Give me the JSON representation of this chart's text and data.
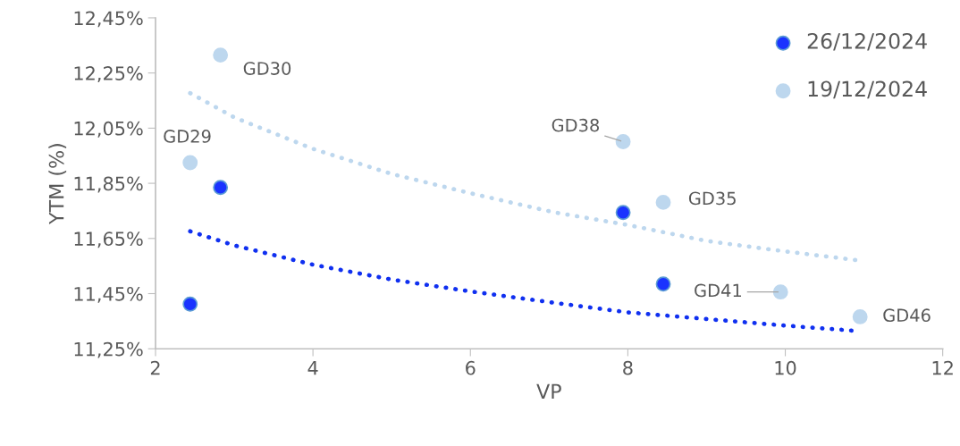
{
  "chart_data": {
    "type": "scatter",
    "xlabel": "VP",
    "ylabel": "YTM (%)",
    "xlim": [
      2,
      12
    ],
    "xticks": [
      2,
      4,
      6,
      8,
      10,
      12
    ],
    "ylim": [
      11.25,
      12.45
    ],
    "yticks": [
      {
        "value": 11.25,
        "label": "11,25%"
      },
      {
        "value": 11.45,
        "label": "11,45%"
      },
      {
        "value": 11.65,
        "label": "11,65%"
      },
      {
        "value": 11.85,
        "label": "11,85%"
      },
      {
        "value": 12.05,
        "label": "12,05%"
      },
      {
        "value": 12.25,
        "label": "12,25%"
      },
      {
        "value": 12.45,
        "label": "12,45%"
      }
    ],
    "grid": false,
    "legend": "top right",
    "series": [
      {
        "type": "line",
        "line_style": "dotted",
        "color": "#bdd7ee",
        "x": [
          2.44,
          3,
          4,
          5,
          6,
          7.06,
          8,
          9,
          10,
          10.92
        ],
        "values": [
          12.177,
          12.089,
          11.975,
          11.884,
          11.814,
          11.745,
          11.699,
          11.641,
          11.603,
          11.571
        ]
      },
      {
        "type": "line",
        "line_style": "dotted",
        "color": "#1030f0",
        "x": [
          2.44,
          3,
          4,
          5,
          6,
          7.06,
          8,
          9,
          10,
          10.85
        ],
        "values": [
          11.676,
          11.625,
          11.555,
          11.501,
          11.458,
          11.417,
          11.382,
          11.358,
          11.334,
          11.316
        ]
      },
      {
        "name": "26/12/2024",
        "color": "#1a33ff",
        "marker": "circle",
        "x": [
          2.44,
          2.825,
          7.94,
          8.45
        ],
        "values": [
          11.412,
          11.835,
          11.744,
          11.485
        ]
      },
      {
        "name": "19/12/2024",
        "color": "#bdd7ee",
        "marker": "circle",
        "x": [
          2.44,
          2.825,
          7.94,
          8.45,
          9.94,
          10.95
        ],
        "values": [
          11.925,
          12.315,
          12.001,
          11.781,
          11.456,
          11.366
        ]
      }
    ],
    "annotations": [
      {
        "text": "GD29",
        "x": 2.44,
        "y": 11.925
      },
      {
        "text": "GD30",
        "x": 2.825,
        "y": 12.315
      },
      {
        "text": "GD38",
        "x": 7.94,
        "y": 12.001
      },
      {
        "text": "GD35",
        "x": 8.45,
        "y": 11.781
      },
      {
        "text": "GD41",
        "x": 9.94,
        "y": 11.456
      },
      {
        "text": "GD46",
        "x": 10.95,
        "y": 11.366
      }
    ]
  }
}
